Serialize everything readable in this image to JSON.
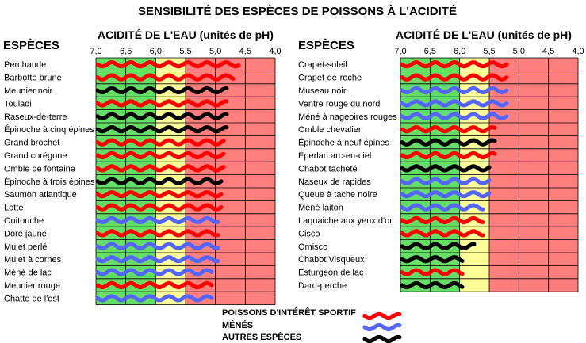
{
  "title": "SENSIBILITÉ DES ESPÈCES DE POISSONS À L'ACIDITÉ",
  "species_header": "ESPÈCES",
  "axis_title": "ACIDITÉ DE L'EAU (unités de pH)",
  "colors": {
    "green": "#66dd66",
    "yellow": "#ffff99",
    "red": "#ff7f7f",
    "sport": "#ff0000",
    "mene": "#5566ff",
    "autre": "#000000"
  },
  "legend": [
    {
      "label": "POISSONS D'INTÉRÊT SPORTIF",
      "category": "sport"
    },
    {
      "label": "MÉNÉS",
      "category": "mene"
    },
    {
      "label": "AUTRES ESPÈCES",
      "category": "autre"
    }
  ],
  "chart_data": [
    {
      "type": "bar",
      "title": "ACIDITÉ DE L'EAU (unités de pH)",
      "xlabel": "ACIDITÉ DE L'EAU (unités de pH)",
      "ylabel": "ESPÈCES",
      "x_ticks": [
        "7,0",
        "6,5",
        "6,0",
        "5,5",
        "5,0",
        "4,5",
        "4,0"
      ],
      "xlim": [
        7.0,
        4.0
      ],
      "zones": [
        {
          "from": 7.0,
          "to": 6.0,
          "color": "green"
        },
        {
          "from": 6.0,
          "to": 5.5,
          "color": "yellow"
        },
        {
          "from": 5.5,
          "to": 4.0,
          "color": "red"
        }
      ],
      "categories": [
        "Perchaude",
        "Barbotte brune",
        "Meunier noir",
        "Touladi",
        "Raseux-de-terre",
        "Épinoche à cinq épines",
        "Grand brochet",
        "Grand corégone",
        "Omble de fontaine",
        "Épinoche à trois épines",
        "Saumon atlantique",
        "Lotte",
        "Ouitouche",
        "Doré jaune",
        "Mulet perlé",
        "Mulet à cornes",
        "Méné de lac",
        "Meunier rouge",
        "Chatte de l'est"
      ],
      "group": [
        "sport",
        "sport",
        "autre",
        "sport",
        "autre",
        "autre",
        "sport",
        "sport",
        "sport",
        "autre",
        "sport",
        "sport",
        "mene",
        "sport",
        "mene",
        "mene",
        "mene",
        "sport",
        "mene"
      ],
      "values": [
        4.6,
        4.7,
        4.8,
        4.8,
        4.8,
        4.8,
        4.85,
        4.85,
        4.85,
        4.9,
        4.9,
        4.9,
        4.95,
        4.95,
        4.95,
        4.95,
        5.05,
        5.05,
        5.05
      ]
    },
    {
      "type": "bar",
      "title": "ACIDITÉ DE L'EAU (unités de pH)",
      "xlabel": "ACIDITÉ DE L'EAU (unités de pH)",
      "ylabel": "ESPÈCES",
      "x_ticks": [
        "7,0",
        "6,5",
        "6,0",
        "5,5",
        "5,0",
        "4,5",
        "4,0"
      ],
      "xlim": [
        7.0,
        4.0
      ],
      "zones": [
        {
          "from": 7.0,
          "to": 6.0,
          "color": "green"
        },
        {
          "from": 6.0,
          "to": 5.5,
          "color": "yellow"
        },
        {
          "from": 5.5,
          "to": 4.0,
          "color": "red"
        }
      ],
      "categories": [
        "Crapet-soleil",
        "Crapet-de-roche",
        "Museau noir",
        "Ventre rouge du nord",
        "Méné à nageoires rouges",
        "Omble chevalier",
        "Épinoche à neuf épines",
        "Éperlan arc-en-ciel",
        "Chabot tacheté",
        "Naseux de rapides",
        "Queue à tache noire",
        "Méné laiton",
        "Laquaiche aux yeux d'or",
        "Cisco",
        "Omisco",
        "Chabot Visqueux",
        "Esturgeon de lac",
        "Dard-perche"
      ],
      "group": [
        "sport",
        "sport",
        "mene",
        "mene",
        "mene",
        "sport",
        "autre",
        "sport",
        "autre",
        "mene",
        "mene",
        "mene",
        "sport",
        "sport",
        "autre",
        "autre",
        "sport",
        "autre"
      ],
      "values": [
        5.2,
        5.2,
        5.2,
        5.2,
        5.2,
        5.4,
        5.4,
        5.4,
        5.5,
        5.5,
        5.5,
        5.6,
        5.6,
        5.6,
        5.75,
        5.95,
        5.95,
        5.95
      ]
    }
  ]
}
